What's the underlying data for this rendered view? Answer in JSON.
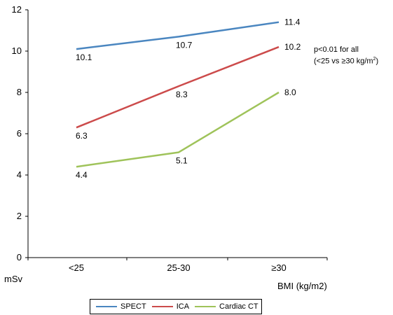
{
  "chart_data": {
    "type": "line",
    "categories": [
      "<25",
      "25-30",
      "≥30"
    ],
    "series": [
      {
        "name": "SPECT",
        "values": [
          10.1,
          10.7,
          11.4
        ],
        "labels": [
          "10.1",
          "10.7",
          "11.4"
        ],
        "color": "#4a86c0"
      },
      {
        "name": "ICA",
        "values": [
          6.3,
          8.3,
          10.2
        ],
        "labels": [
          "6.3",
          "8.3",
          "10.2"
        ],
        "color": "#cc4b4b"
      },
      {
        "name": "Cardiac CT",
        "values": [
          4.4,
          5.1,
          8.0
        ],
        "labels": [
          "4.4",
          "5.1",
          "8.0"
        ],
        "color": "#9fc35a"
      }
    ],
    "ylim": [
      0,
      12
    ],
    "yticks": [
      0,
      2,
      4,
      6,
      8,
      10,
      12
    ],
    "ylabel": "mSv",
    "xlabel": "BMI (kg/m2)",
    "grid": false,
    "legend_position": "bottom",
    "annotation": {
      "line1": "p<0.01 for all",
      "line2_prefix": "(<25 vs ≥30 kg/m",
      "line2_sup": "2",
      "line2_suffix": ")"
    }
  }
}
